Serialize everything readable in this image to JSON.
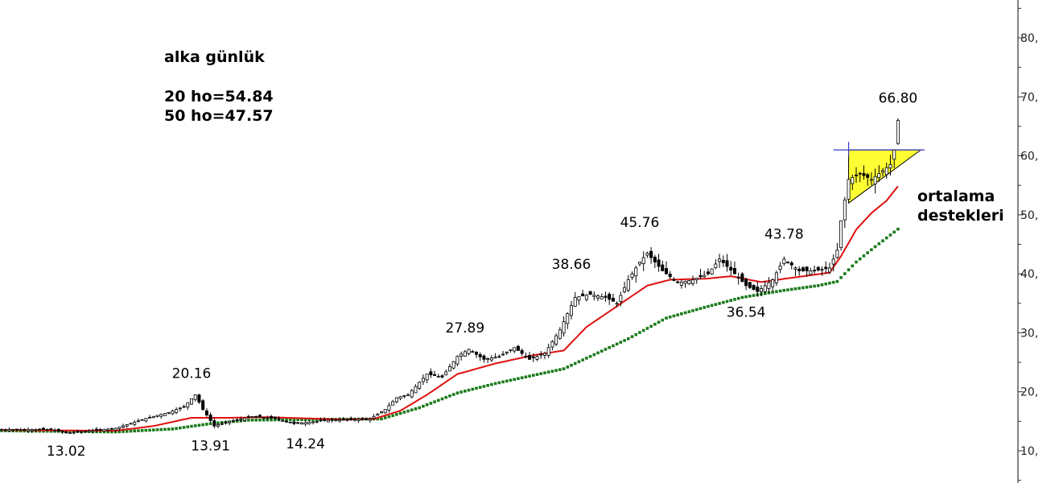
{
  "header": {
    "title": "alka günlük",
    "ma20_label": "20 ho=54.84",
    "ma50_label": "50 ho=47.57"
  },
  "side_note": {
    "line1": "ortalama",
    "line2": "destekleri"
  },
  "colors": {
    "ma20": "#e01010",
    "ma50": "#1a7a1a",
    "triangle_fill": "#ffff33",
    "triangle_line": "#3a3acc",
    "axis": "#333333",
    "candle": "#000000"
  },
  "chart_data": {
    "type": "candlestick",
    "ylim": [
      5,
      86
    ],
    "y_ticks": [
      {
        "value": 10,
        "label": "10,"
      },
      {
        "value": 20,
        "label": "20,"
      },
      {
        "value": 30,
        "label": "30,"
      },
      {
        "value": 40,
        "label": "40,"
      },
      {
        "value": 50,
        "label": "50,"
      },
      {
        "value": 60,
        "label": "60,"
      },
      {
        "value": 70,
        "label": "70,"
      },
      {
        "value": 80,
        "label": "80,"
      }
    ],
    "price_anchors": [
      {
        "i": 0,
        "v": 13.6
      },
      {
        "i": 13,
        "v": 13.6
      },
      {
        "i": 17,
        "v": 13.02
      },
      {
        "i": 25,
        "v": 13.5
      },
      {
        "i": 30,
        "v": 13.8
      },
      {
        "i": 38,
        "v": 15.5
      },
      {
        "i": 44,
        "v": 16.5
      },
      {
        "i": 48,
        "v": 17.5
      },
      {
        "i": 51,
        "v": 19.5
      },
      {
        "i": 53,
        "v": 17.0
      },
      {
        "i": 56,
        "v": 14.2
      },
      {
        "i": 60,
        "v": 15.0
      },
      {
        "i": 66,
        "v": 15.8
      },
      {
        "i": 72,
        "v": 15.5
      },
      {
        "i": 77,
        "v": 14.6
      },
      {
        "i": 86,
        "v": 15.2
      },
      {
        "i": 97,
        "v": 15.4
      },
      {
        "i": 101,
        "v": 17.0
      },
      {
        "i": 104,
        "v": 19.0
      },
      {
        "i": 107,
        "v": 19.5
      },
      {
        "i": 112,
        "v": 23.0
      },
      {
        "i": 116,
        "v": 22.5
      },
      {
        "i": 120,
        "v": 26.0
      },
      {
        "i": 123,
        "v": 27.2
      },
      {
        "i": 127,
        "v": 25.5
      },
      {
        "i": 131,
        "v": 26.0
      },
      {
        "i": 135,
        "v": 27.5
      },
      {
        "i": 139,
        "v": 25.5
      },
      {
        "i": 143,
        "v": 26.5
      },
      {
        "i": 147,
        "v": 30.5
      },
      {
        "i": 151,
        "v": 36.0
      },
      {
        "i": 155,
        "v": 36.5
      },
      {
        "i": 159,
        "v": 36.0
      },
      {
        "i": 162,
        "v": 35.0
      },
      {
        "i": 165,
        "v": 39.0
      },
      {
        "i": 168,
        "v": 42.0
      },
      {
        "i": 170,
        "v": 43.5
      },
      {
        "i": 174,
        "v": 40.5
      },
      {
        "i": 178,
        "v": 38.5
      },
      {
        "i": 182,
        "v": 39.0
      },
      {
        "i": 186,
        "v": 40.0
      },
      {
        "i": 189,
        "v": 42.5
      },
      {
        "i": 193,
        "v": 40.0
      },
      {
        "i": 196,
        "v": 38.0
      },
      {
        "i": 199,
        "v": 37.0
      },
      {
        "i": 203,
        "v": 39.0
      },
      {
        "i": 206,
        "v": 42.5
      },
      {
        "i": 210,
        "v": 40.5
      },
      {
        "i": 214,
        "v": 40.5
      },
      {
        "i": 218,
        "v": 41.0
      },
      {
        "i": 220,
        "v": 44.0
      },
      {
        "i": 221,
        "v": 49.0
      },
      {
        "i": 223,
        "v": 56.0
      },
      {
        "i": 226,
        "v": 57.0
      },
      {
        "i": 229,
        "v": 56.0
      },
      {
        "i": 232,
        "v": 57.5
      },
      {
        "i": 234,
        "v": 58.5
      },
      {
        "i": 235,
        "v": 61.0
      },
      {
        "i": 236,
        "v": 66.0
      }
    ],
    "ma20_anchors": [
      {
        "i": 0,
        "v": 13.5
      },
      {
        "i": 30,
        "v": 13.4
      },
      {
        "i": 40,
        "v": 14.2
      },
      {
        "i": 50,
        "v": 15.6
      },
      {
        "i": 60,
        "v": 15.6
      },
      {
        "i": 70,
        "v": 15.7
      },
      {
        "i": 90,
        "v": 15.3
      },
      {
        "i": 98,
        "v": 15.4
      },
      {
        "i": 105,
        "v": 16.8
      },
      {
        "i": 112,
        "v": 19.5
      },
      {
        "i": 120,
        "v": 23.0
      },
      {
        "i": 130,
        "v": 24.8
      },
      {
        "i": 140,
        "v": 26.2
      },
      {
        "i": 148,
        "v": 27.0
      },
      {
        "i": 154,
        "v": 31.0
      },
      {
        "i": 162,
        "v": 34.5
      },
      {
        "i": 170,
        "v": 38.0
      },
      {
        "i": 176,
        "v": 39.0
      },
      {
        "i": 186,
        "v": 39.2
      },
      {
        "i": 192,
        "v": 39.6
      },
      {
        "i": 200,
        "v": 38.6
      },
      {
        "i": 210,
        "v": 39.5
      },
      {
        "i": 218,
        "v": 40.2
      },
      {
        "i": 221,
        "v": 43.0
      },
      {
        "i": 225,
        "v": 47.5
      },
      {
        "i": 229,
        "v": 50.3
      },
      {
        "i": 233,
        "v": 52.4
      },
      {
        "i": 236,
        "v": 54.84
      }
    ],
    "ma50_anchors": [
      {
        "i": 0,
        "v": 13.4
      },
      {
        "i": 30,
        "v": 13.2
      },
      {
        "i": 45,
        "v": 13.7
      },
      {
        "i": 55,
        "v": 14.6
      },
      {
        "i": 65,
        "v": 15.2
      },
      {
        "i": 80,
        "v": 15.3
      },
      {
        "i": 100,
        "v": 15.4
      },
      {
        "i": 110,
        "v": 17.3
      },
      {
        "i": 120,
        "v": 19.8
      },
      {
        "i": 130,
        "v": 21.4
      },
      {
        "i": 140,
        "v": 22.8
      },
      {
        "i": 148,
        "v": 23.9
      },
      {
        "i": 155,
        "v": 26.0
      },
      {
        "i": 165,
        "v": 29.0
      },
      {
        "i": 175,
        "v": 32.5
      },
      {
        "i": 185,
        "v": 34.3
      },
      {
        "i": 195,
        "v": 36.0
      },
      {
        "i": 205,
        "v": 37.1
      },
      {
        "i": 215,
        "v": 38.0
      },
      {
        "i": 220,
        "v": 38.7
      },
      {
        "i": 225,
        "v": 42.0
      },
      {
        "i": 230,
        "v": 44.6
      },
      {
        "i": 236,
        "v": 47.57
      }
    ],
    "triangle": {
      "resistance": 61.0,
      "apex_i": 242,
      "start_i": 223,
      "start_low": 52.0
    },
    "annotations": [
      {
        "label": "13.02",
        "i": 17,
        "v": 13.02,
        "pos": "below"
      },
      {
        "label": "20.16",
        "i": 50,
        "v": 20.16,
        "pos": "above"
      },
      {
        "label": "13.91",
        "i": 55,
        "v": 13.91,
        "pos": "below"
      },
      {
        "label": "14.24",
        "i": 80,
        "v": 14.24,
        "pos": "below"
      },
      {
        "label": "27.89",
        "i": 122,
        "v": 27.89,
        "pos": "above"
      },
      {
        "label": "38.66",
        "i": 150,
        "v": 38.66,
        "pos": "above"
      },
      {
        "label": "45.76",
        "i": 168,
        "v": 45.76,
        "pos": "above"
      },
      {
        "label": "36.54",
        "i": 196,
        "v": 36.54,
        "pos": "below"
      },
      {
        "label": "43.78",
        "i": 206,
        "v": 43.78,
        "pos": "above"
      },
      {
        "label": "66.80",
        "i": 236,
        "v": 66.8,
        "pos": "above"
      }
    ]
  }
}
